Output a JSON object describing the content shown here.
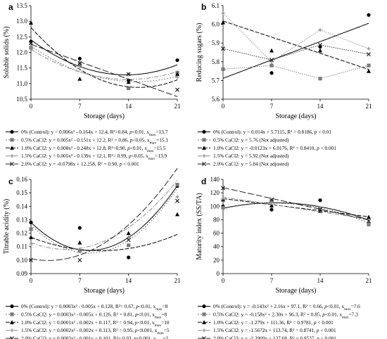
{
  "chart_data": [
    {
      "panel": "a",
      "type": "scatter",
      "xlabel": "Storage (days)",
      "ylabel": "Soluble solids (%)",
      "x": [
        0,
        7,
        14,
        21
      ],
      "xlim": [
        0,
        21
      ],
      "ylim": [
        10.5,
        13.5
      ],
      "yticks": [
        10.5,
        11.0,
        11.5,
        12.0,
        12.5,
        13.0,
        13.5
      ],
      "ytick_labels": [
        "10.5",
        "11.0",
        "11.5",
        "12.0",
        "12.5",
        "13.0",
        "13.5"
      ],
      "series": [
        {
          "name": "0% (Control)",
          "values": [
            12.35,
            11.8,
            11.1,
            11.75
          ],
          "fit": {
            "kind": "quad",
            "a": 0.006,
            "b": -0.164,
            "c": 12.4
          },
          "legend_eq": "y = 0.006x² - 0.164x + 12.4, R²=0.84, ",
          "legend_p": "p",
          "legend_p_tail": "<0.01, x",
          "legend_sub": "max",
          "legend_end": "=13.7"
        },
        {
          "name": "0.5% CaCl2",
          "values": [
            12.15,
            11.6,
            10.85,
            11.35
          ],
          "fit": {
            "kind": "quad",
            "a": 0.005,
            "b": -0.151,
            "c": 12.2
          },
          "legend_eq": "y = 0.005x² - 0.151x + 12.2, R² = 0.86, ",
          "legend_p": "p",
          "legend_p_tail": "<0.05, x",
          "legend_sub": "max",
          "legend_end": "=15.1"
        },
        {
          "name": "1.0% CaCl2",
          "values": [
            12.95,
            11.15,
            11.05,
            11.3
          ],
          "fit": {
            "kind": "quad",
            "a": 0.008,
            "b": -0.248,
            "c": 12.8
          },
          "legend_eq": "y = 0.008x² - 0.248x + 12.8, R²=0.90, ",
          "legend_p": "p",
          "legend_p_tail": "<0.01, x",
          "legend_sub": "max",
          "legend_end": "=15.5"
        },
        {
          "name": "1.5% CaCl2",
          "values": [
            12.15,
            11.55,
            11.3,
            11.2
          ],
          "fit": {
            "kind": "quad",
            "a": 0.005,
            "b": -0.139,
            "c": 12.1
          },
          "legend_eq": "y = 0.005x² - 0.139x + 12.1, R²= 0.99, ",
          "legend_p": "p",
          "legend_p_tail": "<0.05, x",
          "legend_sub": "max",
          "legend_end": "=13.9"
        },
        {
          "name": "2.0% CaCl2",
          "values": [
            12.3,
            11.65,
            11.3,
            10.8
          ],
          "fit": {
            "kind": "lin",
            "a": -0.0798,
            "b": 12.258
          },
          "legend_eq": "y = -0.0798x + 12.258, R² = 0.90, ",
          "legend_p": "p",
          "legend_p_tail": " < 0.001",
          "legend_sub": "",
          "legend_end": ""
        }
      ]
    },
    {
      "panel": "b",
      "type": "scatter",
      "xlabel": "Storage (days)",
      "ylabel": "Reducing sugars (%)",
      "x": [
        0,
        7,
        14,
        21
      ],
      "xlim": [
        0,
        21
      ],
      "ylim": [
        5.6,
        6.1
      ],
      "yticks": [
        5.6,
        5.7,
        5.8,
        5.9,
        6.0,
        6.1
      ],
      "ytick_labels": [
        "5.6",
        "5.7",
        "5.8",
        "5.9",
        "6.0",
        "6.1"
      ],
      "series": [
        {
          "name": "0% (Control)",
          "values": [
            5.76,
            5.74,
            5.88,
            6.05
          ],
          "fit": {
            "kind": "lin",
            "a": 0.014,
            "b": 5.7115
          },
          "legend_eq": "y = 0.014x + 5.7115, R² = 0.8186, ",
          "legend_p": "p",
          "legend_p_tail": " < 0.01",
          "legend_sub": "",
          "legend_end": ""
        },
        {
          "name": "0.5% CaCl2",
          "values": [
            5.76,
            5.78,
            5.71,
            5.78
          ],
          "fit": {
            "kind": "none"
          },
          "legend_eq": "y = 5.76 (Not adjusted)",
          "legend_p": "",
          "legend_p_tail": "",
          "legend_sub": "",
          "legend_end": ""
        },
        {
          "name": "1.0% CaCl2",
          "values": [
            6.01,
            5.86,
            5.86,
            5.75
          ],
          "fit": {
            "kind": "lin",
            "a": -0.0123,
            "b": 6.0176
          },
          "legend_eq": "y = -0.0123x + 6.0176, R² = 0.8410, ",
          "legend_p": "p",
          "legend_p_tail": " < 0.001",
          "legend_sub": "",
          "legend_end": ""
        },
        {
          "name": "1.5% CaCl2",
          "values": [
            6.06,
            5.8,
            5.97,
            5.87
          ],
          "fit": {
            "kind": "none"
          },
          "legend_eq": "y = 5.92 (Not adjusted)",
          "legend_p": "",
          "legend_p_tail": "",
          "legend_sub": "",
          "legend_end": ""
        },
        {
          "name": "2.0% CaCl2",
          "values": [
            5.87,
            5.81,
            5.89,
            5.84
          ],
          "fit": {
            "kind": "none"
          },
          "legend_eq": "y = 5.84 (Not adjusted)",
          "legend_p": "",
          "legend_p_tail": "",
          "legend_sub": "",
          "legend_end": ""
        }
      ]
    },
    {
      "panel": "c",
      "type": "scatter",
      "xlabel": "Storage (days)",
      "ylabel": "Titrable acidity (%)",
      "x": [
        0,
        7,
        14,
        21
      ],
      "xlim": [
        0,
        21
      ],
      "ylim": [
        0.09,
        0.16
      ],
      "yticks": [
        0.09,
        0.1,
        0.11,
        0.12,
        0.13,
        0.14,
        0.15,
        0.16
      ],
      "ytick_labels": [
        "0.09",
        "0.10",
        "0.11",
        "0.12",
        "0.13",
        "0.14",
        "0.15",
        "0.16"
      ],
      "series": [
        {
          "name": "0% (Control)",
          "values": [
            0.128,
            0.124,
            0.102,
            0.155
          ],
          "fit": {
            "kind": "quad",
            "a": 0.0003,
            "b": -0.005,
            "c": 0.128
          },
          "legend_eq": "y = 0.0003x² - 0.005x + 0.128, R²= 0.67, ",
          "legend_p": "p",
          "legend_p_tail": "<0.01, x",
          "legend_sub": "max",
          "legend_end": "=8"
        },
        {
          "name": "0.5% CaCl2",
          "values": [
            0.123,
            0.107,
            0.111,
            0.156
          ],
          "fit": {
            "kind": "quad",
            "a": 0.0003,
            "b": -0.005,
            "c": 0.126
          },
          "legend_eq": "y = 0.0003x² - 0.005x + 0.126, R² = 0.81, ",
          "legend_p": "p",
          "legend_p_tail": "<0.01, x",
          "legend_sub": "max",
          "legend_end": "=8"
        },
        {
          "name": "1.0% CaCl2",
          "values": [
            0.117,
            0.113,
            0.12,
            0.134
          ],
          "fit": {
            "kind": "quad",
            "a": 0.0001,
            "b": -0.002,
            "c": 0.117
          },
          "legend_eq": "y = 0.0001x² - 0.002x + 0.117, R² = 0.94, ",
          "legend_p": "p",
          "legend_p_tail": "<0.01, x",
          "legend_sub": "max",
          "legend_end": "=10"
        },
        {
          "name": "1.5% CaCl2",
          "values": [
            0.112,
            0.108,
            0.117,
            0.147
          ],
          "fit": {
            "kind": "quad",
            "a": 0.0002,
            "b": -0.002,
            "c": 0.113
          },
          "legend_eq": "y = 0.0002x² - 0.002x + 0.113, R² = 0.95, ",
          "legend_p": "p",
          "legend_p_tail": "<0.001, x",
          "legend_sub": "max",
          "legend_end": "=5"
        },
        {
          "name": "2.0% CaCl2",
          "values": [
            0.1,
            0.1,
            0.115,
            0.144
          ],
          "fit": {
            "kind": "quad",
            "a": 0.0002,
            "b": -0.001,
            "c": 0.101
          },
          "legend_eq": "y = 0.0002x² - 0.001x + 0.101, R²= 0.93, ",
          "legend_p": "p",
          "legend_p_tail": "<0.001, x",
          "legend_sub": "max",
          "legend_end": "=3"
        }
      ]
    },
    {
      "panel": "d",
      "type": "scatter",
      "xlabel": "Storage (days)",
      "ylabel": "Maturity index (SS/TA)",
      "x": [
        0,
        7,
        14,
        21
      ],
      "xlim": [
        0,
        21
      ],
      "ylim": [
        0,
        140
      ],
      "yticks": [
        0,
        20,
        40,
        60,
        80,
        100,
        120,
        140
      ],
      "ytick_labels": [
        "0",
        "20",
        "40",
        "60",
        "80",
        "100",
        "120",
        "140"
      ],
      "series": [
        {
          "name": "0% (Control)",
          "values": [
            100,
            95,
            109,
            75
          ],
          "fit": {
            "kind": "quad",
            "a": -0.143,
            "b": 2.16,
            "c": 97.1
          },
          "legend_eq": "y = -0.143x² + 2.16x + 97.1, R² = 0.66, ",
          "legend_p": "p",
          "legend_p_tail": "<0.01, x",
          "legend_sub": "max",
          "legend_end": "=7.6"
        },
        {
          "name": "0.5% CaCl2",
          "values": [
            98,
            108,
            97,
            73
          ],
          "fit": {
            "kind": "quad",
            "a": -0.158,
            "b": 2.3,
            "c": 96.3
          },
          "legend_eq": "y = -0.158x² + 2.30x + 96.3, R² = 0.85, ",
          "legend_p": "p",
          "legend_p_tail": "<0.01, x",
          "legend_sub": "max",
          "legend_end": "=7.3"
        },
        {
          "name": "1.0% CaCl2",
          "values": [
            110,
            101,
            93,
            84
          ],
          "fit": {
            "kind": "lin",
            "a": -1.279,
            "b": 111.36
          },
          "legend_eq": "y = -1.279x + 111.36, R² = 0.9781, ",
          "legend_p": "p",
          "legend_p_tail": " < 0.001",
          "legend_sub": "",
          "legend_end": ""
        },
        {
          "name": "1.5% CaCl2",
          "values": [
            111,
            105,
            97,
            75
          ],
          "fit": {
            "kind": "lin",
            "a": -1.5672,
            "b": 113.74
          },
          "legend_eq": "y = -1.5672x + 113.74, R² = 0.8741, ",
          "legend_p": "p",
          "legend_p_tail": " < 0.001",
          "legend_sub": "",
          "legend_end": ""
        },
        {
          "name": "2.0% CaCl2",
          "values": [
            127,
            110,
            95,
            78
          ],
          "fit": {
            "kind": "lin",
            "a": -2.2909,
            "b": 127.68
          },
          "legend_eq": "y = -2.2909x + 127.68, R² = 0.9537, ",
          "legend_p": "p",
          "legend_p_tail": " < 0.001",
          "legend_sub": "",
          "legend_end": ""
        }
      ]
    }
  ]
}
